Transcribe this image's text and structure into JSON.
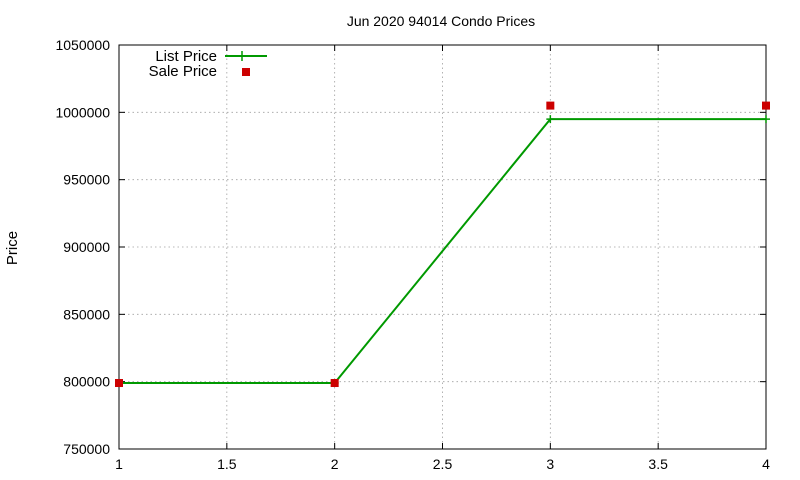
{
  "chart_data": {
    "type": "line",
    "title": "Jun 2020 94014 Condo Prices",
    "xlabel": "",
    "ylabel": "Price",
    "xlim": [
      1,
      4
    ],
    "ylim": [
      750000,
      1050000
    ],
    "x_ticks": [
      1,
      1.5,
      2,
      2.5,
      3,
      3.5,
      4
    ],
    "y_ticks": [
      750000,
      800000,
      850000,
      900000,
      950000,
      1000000,
      1050000
    ],
    "grid": true,
    "legend_position": "top-left",
    "series": [
      {
        "name": "List Price",
        "style": "line-with-plus-markers",
        "color": "#009900",
        "x": [
          1,
          2,
          3,
          4
        ],
        "y": [
          799000,
          799000,
          995000,
          995000
        ]
      },
      {
        "name": "Sale Price",
        "style": "square-markers",
        "color": "#cc0000",
        "x": [
          1,
          2,
          3,
          4
        ],
        "y": [
          799000,
          799000,
          1005000,
          1005000
        ]
      }
    ]
  }
}
